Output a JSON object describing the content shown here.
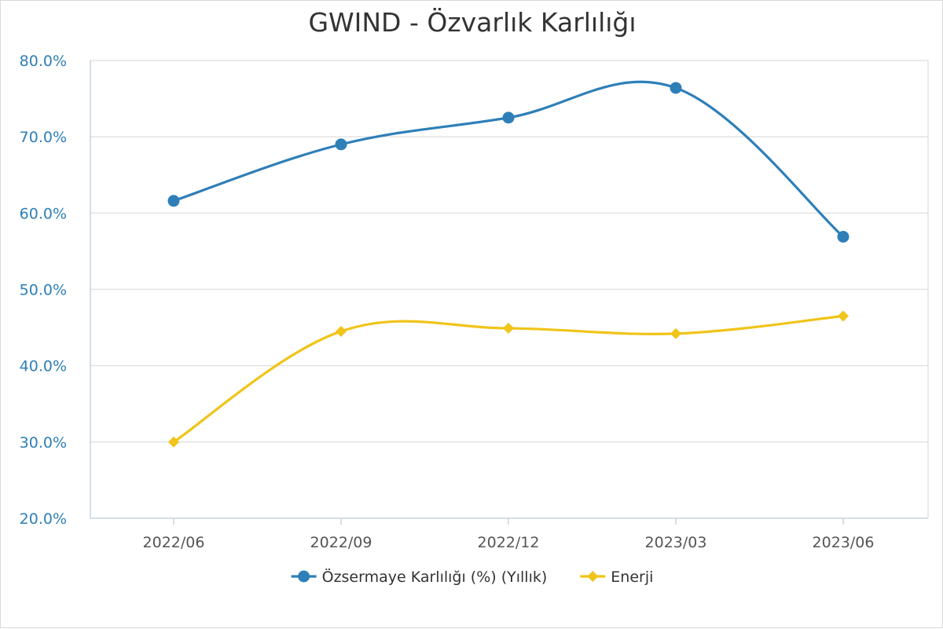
{
  "chart_data": {
    "type": "line",
    "title": "GWIND - Özvarlık Karlılığı",
    "xlabel": "",
    "ylabel": "",
    "categories": [
      "2022/06",
      "2022/09",
      "2022/12",
      "2023/03",
      "2023/06"
    ],
    "ylim": [
      20,
      80
    ],
    "yticks": [
      20,
      30,
      40,
      50,
      60,
      70,
      80
    ],
    "ytick_labels": [
      "20.0%",
      "30.0%",
      "40.0%",
      "50.0%",
      "60.0%",
      "70.0%",
      "80.0%"
    ],
    "grid": true,
    "smooth": true,
    "legend_position": "bottom-center",
    "series": [
      {
        "name": "Özsermaye Karlılığı (%) (Yıllık)",
        "values": [
          61.6,
          69.0,
          72.5,
          76.4,
          56.9
        ],
        "color": "#2e7fb8",
        "marker": "circle"
      },
      {
        "name": "Enerji",
        "values": [
          30.0,
          44.5,
          44.9,
          44.2,
          46.5
        ],
        "color": "#f0c419",
        "marker": "diamond"
      }
    ]
  }
}
